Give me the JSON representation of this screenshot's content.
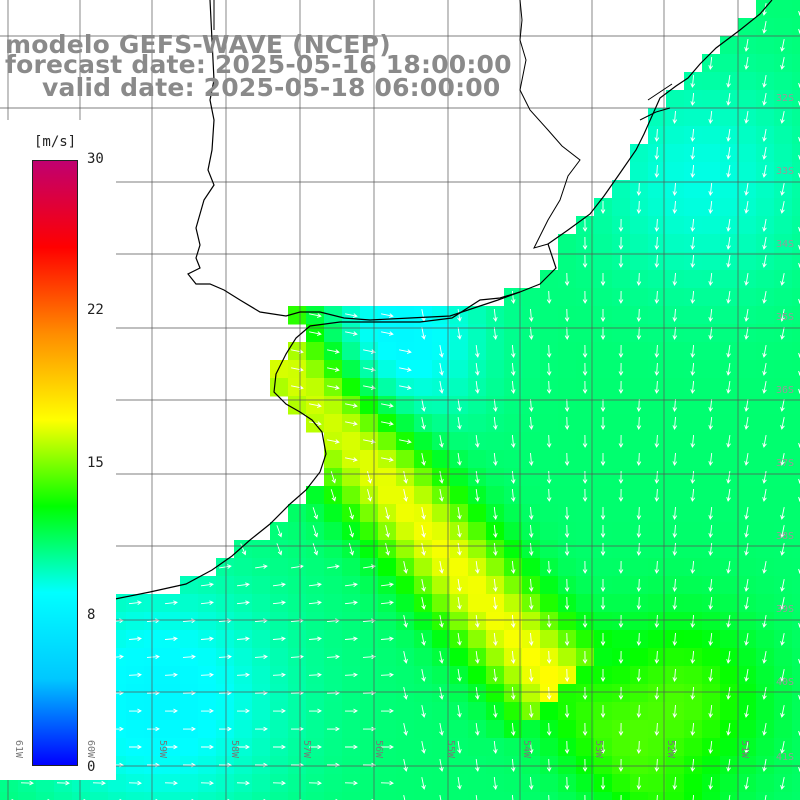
{
  "titles": {
    "model": "modelo GEFS-WAVE (NCEP)",
    "forecast": "forecast date: 2025-05-16 18:00:00",
    "valid": "valid date: 2025-05-18 06:00:00"
  },
  "colorbar": {
    "unit": "[m/s]",
    "ticks": [
      "30",
      "22",
      "15",
      "8",
      "0"
    ],
    "min": 0,
    "max": 30,
    "stops": [
      "#0000ff",
      "#00c8ff",
      "#00ffff",
      "#00ff00",
      "#ffff00",
      "#ff8c00",
      "#ff0000",
      "#c00070"
    ]
  },
  "map": {
    "longitude_labels": [
      "61W",
      "60W",
      "59W",
      "58W",
      "57W",
      "56W",
      "55W",
      "54W",
      "53W",
      "52W",
      "51W"
    ],
    "latitude_labels": [
      "32S",
      "33S",
      "34S",
      "35S",
      "36S",
      "37S",
      "38S",
      "39S",
      "40S",
      "41S"
    ],
    "colors": {
      "land": "#ffffff",
      "grid": "#555555",
      "coast": "#000000",
      "arrow": "#ffffff"
    }
  }
}
